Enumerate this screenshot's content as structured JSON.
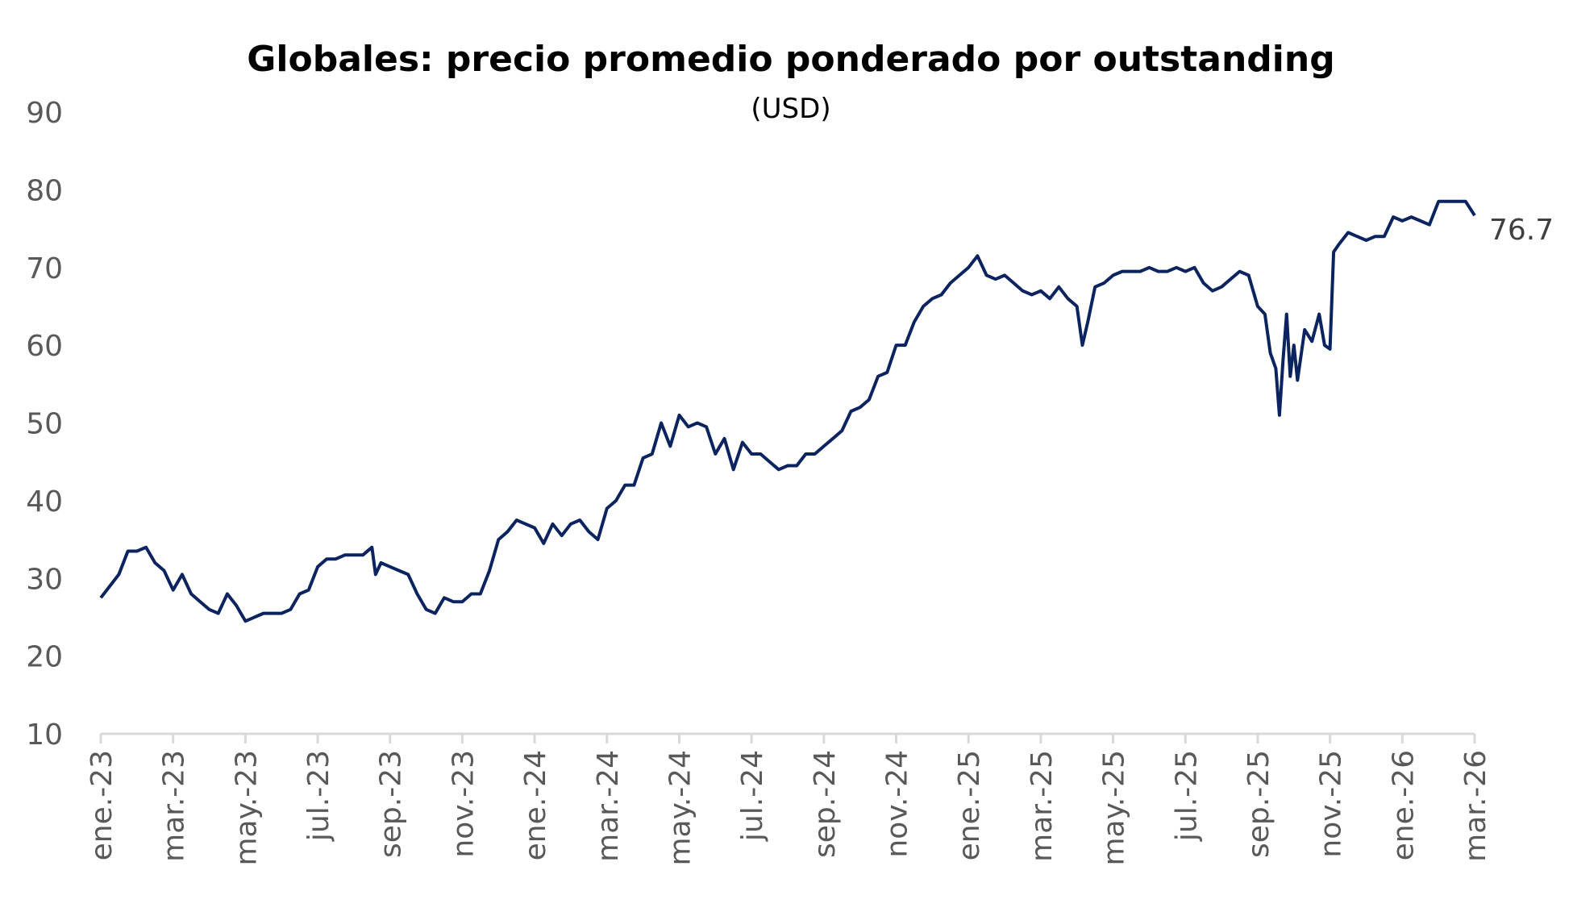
{
  "chart_data": {
    "type": "line",
    "title": "Globales: precio promedio ponderado por outstanding",
    "subtitle": "(USD)",
    "xlabel": "",
    "ylabel": "",
    "ylim": [
      10,
      90
    ],
    "yticks": [
      10,
      20,
      30,
      40,
      50,
      60,
      70,
      80,
      90
    ],
    "xticks": [
      "ene.-23",
      "mar.-23",
      "may.-23",
      "jul.-23",
      "sep.-23",
      "nov.-23",
      "ene.-24",
      "mar.-24",
      "may.-24",
      "jul.-24",
      "sep.-24",
      "nov.-24",
      "ene.-25",
      "mar.-25",
      "may.-25",
      "jul.-25",
      "sep.-25",
      "nov.-25",
      "ene.-26",
      "mar.-26"
    ],
    "grid": false,
    "line_color": "#0b2460",
    "end_label": "76.7",
    "series": [
      {
        "name": "Globales",
        "x_month_index": [
          0,
          0.25,
          0.5,
          0.75,
          1,
          1.25,
          1.5,
          1.75,
          2,
          2.25,
          2.5,
          2.75,
          3,
          3.25,
          3.5,
          3.75,
          4,
          4.25,
          4.5,
          4.75,
          5,
          5.25,
          5.5,
          5.75,
          6,
          6.25,
          6.5,
          6.75,
          7,
          7.25,
          7.5,
          7.6,
          7.75,
          8,
          8.25,
          8.5,
          8.75,
          9,
          9.25,
          9.5,
          9.75,
          10,
          10.25,
          10.5,
          10.75,
          11,
          11.25,
          11.5,
          11.75,
          12,
          12.25,
          12.5,
          12.75,
          13,
          13.25,
          13.5,
          13.75,
          14,
          14.25,
          14.5,
          14.75,
          15,
          15.25,
          15.5,
          15.75,
          16,
          16.25,
          16.5,
          16.75,
          17,
          17.25,
          17.5,
          17.75,
          18,
          18.25,
          18.5,
          18.75,
          19,
          19.25,
          19.5,
          19.75,
          20,
          20.25,
          20.5,
          20.75,
          21,
          21.25,
          21.5,
          21.75,
          22,
          22.25,
          22.5,
          22.75,
          23,
          23.25,
          23.5,
          23.75,
          24,
          24.25,
          24.5,
          24.75,
          25,
          25.25,
          25.5,
          25.75,
          26,
          26.25,
          26.5,
          26.75,
          27,
          27.15,
          27.3,
          27.5,
          27.75,
          28,
          28.25,
          28.5,
          28.75,
          29,
          29.25,
          29.5,
          29.75,
          30,
          30.25,
          30.5,
          30.75,
          31,
          31.25,
          31.5,
          31.75,
          32,
          32.2,
          32.35,
          32.5,
          32.6,
          32.7,
          32.8,
          32.9,
          33,
          33.1,
          33.3,
          33.5,
          33.7,
          33.85,
          34,
          34.1,
          34.25,
          34.5,
          34.75,
          35,
          35.25,
          35.5,
          35.75,
          36,
          36.25,
          36.5,
          36.75,
          37,
          37.25,
          37.5,
          37.75,
          38
        ],
        "values": [
          27.5,
          29,
          30.5,
          33.5,
          33.5,
          34,
          32,
          31,
          28.5,
          30.5,
          28,
          27,
          26,
          25.5,
          28,
          26.5,
          24.5,
          25,
          25.5,
          25.5,
          25.5,
          26,
          28,
          28.5,
          31.5,
          32.5,
          32.5,
          33,
          33,
          33,
          34,
          30.5,
          32,
          31.5,
          31,
          30.5,
          28,
          26,
          25.5,
          27.5,
          27,
          27,
          28,
          28,
          31,
          35,
          36,
          37.5,
          37,
          36.5,
          34.5,
          37,
          35.5,
          37,
          37.5,
          36,
          35,
          39,
          40,
          42,
          42,
          45.5,
          46,
          50,
          47,
          51,
          49.5,
          50,
          49.5,
          46,
          48,
          44,
          47.5,
          46,
          46,
          45,
          44,
          44.5,
          44.5,
          46,
          46,
          47,
          48,
          49,
          51.5,
          52,
          53,
          56,
          56.5,
          60,
          60,
          63,
          65,
          66,
          66.5,
          68,
          69,
          70,
          71.5,
          69,
          68.5,
          69,
          68,
          67,
          66.5,
          67,
          66,
          67.5,
          66,
          65,
          60,
          63,
          67.5,
          68,
          69,
          69.5,
          69.5,
          69.5,
          70,
          69.5,
          69.5,
          70,
          69.5,
          70,
          68,
          67,
          67.5,
          68.5,
          69.5,
          69,
          65,
          64,
          59,
          57,
          51,
          58,
          64,
          56,
          60,
          55.5,
          62,
          60.5,
          64,
          60,
          59.5,
          72,
          73,
          74.5,
          74,
          73.5,
          74,
          74,
          76.5,
          76,
          76.5,
          76,
          75.5,
          78.5,
          78.5,
          78.5,
          78.5,
          76.7
        ]
      }
    ]
  }
}
